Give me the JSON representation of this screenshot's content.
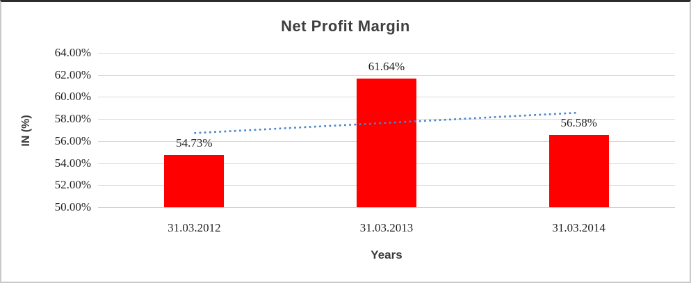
{
  "chart_data": {
    "type": "bar",
    "title": "Net Profit Margin",
    "xlabel": "Years",
    "ylabel": "IN (%)",
    "categories": [
      "31.03.2012",
      "31.03.2013",
      "31.03.2014"
    ],
    "values": [
      54.73,
      61.64,
      56.58
    ],
    "data_labels": [
      "54.73%",
      "61.64%",
      "56.58%"
    ],
    "ylim": [
      50,
      64
    ],
    "y_tick_step": 2,
    "y_ticks": [
      "64.00%",
      "62.00%",
      "60.00%",
      "58.00%",
      "56.00%",
      "54.00%",
      "52.00%",
      "50.00%"
    ],
    "grid": "on",
    "legend": "none",
    "bar_color": "#ff0000",
    "trendline": {
      "type": "linear",
      "style": "dotted",
      "color": "#4a86c8"
    }
  }
}
